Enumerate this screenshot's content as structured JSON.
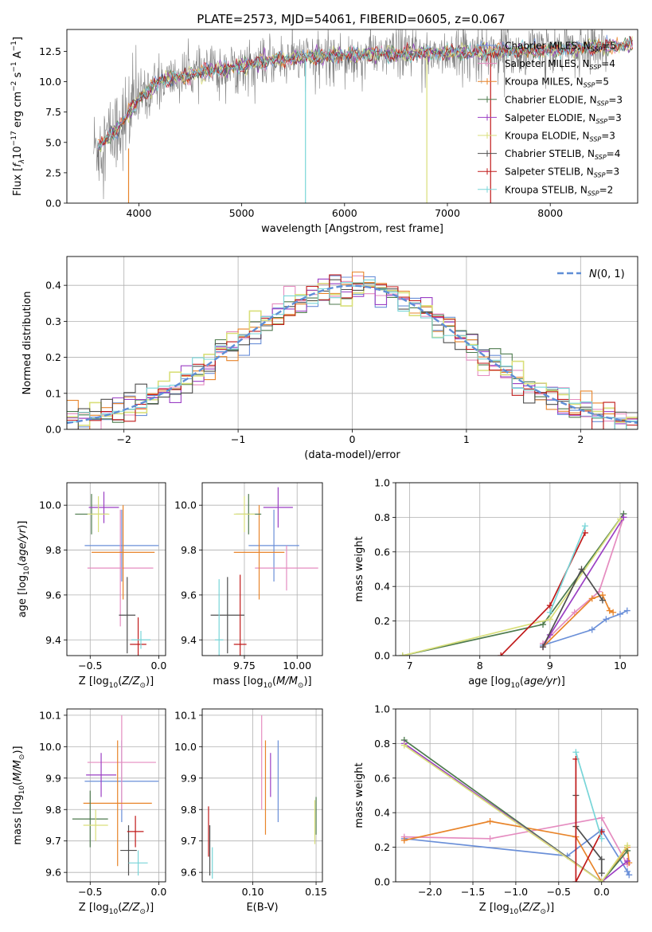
{
  "figure": {
    "title": "PLATE=2573, MJD=54061, FIBERID=0605, z=0.067"
  },
  "colors": {
    "Chabrier MILES": "#6a8fd8",
    "Salpeter MILES": "#e58cc0",
    "Kroupa MILES": "#e8842a",
    "Chabrier ELODIE": "#4d7a4d",
    "Salpeter ELODIE": "#9b3fc4",
    "Kroupa ELODIE": "#d9df7a",
    "Chabrier STELIB": "#4f4f4f",
    "Salpeter STELIB": "#c01a1a",
    "Kroupa STELIB": "#78d5d8",
    "gaussian": "#5f8ed6",
    "observed": "#7f7f7f",
    "grid": "#b0b0b0"
  },
  "chart_data": [
    {
      "id": "spectrum",
      "type": "line",
      "title": "PLATE=2573, MJD=54061, FIBERID=0605, z=0.067",
      "xlabel": "wavelength [Angstrom, rest frame]",
      "ylabel": "Flux [f_λ 10^-17 erg cm^-2 s^-1 A^-1]",
      "xlim": [
        3300,
        8850
      ],
      "ylim": [
        0,
        14.3
      ],
      "xticks": [
        4000,
        5000,
        6000,
        7000,
        8000
      ],
      "yticks": [
        0.0,
        2.5,
        5.0,
        7.5,
        10.0,
        12.5
      ],
      "grid": false,
      "legend_position": "right",
      "continuum": [
        [
          3600,
          4.6
        ],
        [
          3800,
          6.2
        ],
        [
          4000,
          8.6
        ],
        [
          4200,
          10.0
        ],
        [
          4500,
          10.6
        ],
        [
          4800,
          11.0
        ],
        [
          5000,
          11.3
        ],
        [
          5300,
          11.8
        ],
        [
          5600,
          12.0
        ],
        [
          6000,
          12.2
        ],
        [
          6500,
          12.3
        ],
        [
          7000,
          12.4
        ],
        [
          7500,
          12.5
        ],
        [
          8000,
          12.6
        ],
        [
          8500,
          12.9
        ],
        [
          8800,
          13.0
        ]
      ],
      "observed_range": [
        3560,
        8550
      ],
      "model_range": [
        3600,
        8800
      ],
      "artifacts": [
        {
          "x": 3900,
          "ymin": 0.0,
          "ymax": 4.5,
          "series": "Kroupa MILES"
        },
        {
          "x": 5620,
          "ymin": 0.0,
          "ymax": 11.8,
          "series": "Kroupa STELIB"
        },
        {
          "x": 6800,
          "ymin": 0.0,
          "ymax": 12.1,
          "series": "Kroupa ELODIE"
        },
        {
          "x": 7420,
          "ymin": 0.0,
          "ymax": 12.4,
          "series": "Salpeter STELIB"
        }
      ],
      "legend": [
        {
          "label": "Chabrier MILES",
          "nssp": "5"
        },
        {
          "label": "Salpeter MILES",
          "nssp": "4"
        },
        {
          "label": "Kroupa MILES",
          "nssp": "5"
        },
        {
          "label": "Chabrier ELODIE",
          "nssp": "3"
        },
        {
          "label": "Salpeter ELODIE",
          "nssp": "3"
        },
        {
          "label": "Kroupa ELODIE",
          "nssp": "3"
        },
        {
          "label": "Chabrier STELIB",
          "nssp": "4"
        },
        {
          "label": "Salpeter STELIB",
          "nssp": "3"
        },
        {
          "label": "Kroupa STELIB",
          "nssp": "2"
        }
      ]
    },
    {
      "id": "residuals",
      "type": "histogram",
      "xlabel": "(data-model)/error",
      "ylabel": "Normed distribution",
      "xlim": [
        -2.5,
        2.5
      ],
      "ylim": [
        0,
        0.48
      ],
      "xticks": [
        -2,
        -1,
        0,
        1,
        2
      ],
      "yticks": [
        0.0,
        0.1,
        0.2,
        0.3,
        0.4
      ],
      "grid": true,
      "bin_width": 0.1,
      "gaussian_label": "N(0,1)",
      "legend_position": "top-right"
    },
    {
      "id": "age_vs_Z",
      "type": "errorbar",
      "xlabel": "Z [log10(Z/Zsun)]",
      "ylabel": "age [log10(age/yr)]",
      "xlim": [
        -0.67,
        0.05
      ],
      "ylim": [
        9.33,
        10.1
      ],
      "xticks": [
        -0.5,
        0.0
      ],
      "yticks": [
        9.4,
        9.6,
        9.8,
        10.0
      ],
      "grid": true,
      "points": [
        {
          "series": "Chabrier MILES",
          "x": -0.27,
          "y": 9.82,
          "xerr": 0.27,
          "yerr": 0.16
        },
        {
          "series": "Salpeter MILES",
          "x": -0.28,
          "y": 9.72,
          "xerr": 0.24,
          "yerr": 0.26
        },
        {
          "series": "Kroupa MILES",
          "x": -0.26,
          "y": 9.79,
          "xerr": 0.23,
          "yerr": 0.21
        },
        {
          "series": "Chabrier ELODIE",
          "x": -0.49,
          "y": 9.96,
          "xerr": 0.12,
          "yerr": 0.09
        },
        {
          "series": "Salpeter ELODIE",
          "x": -0.4,
          "y": 9.99,
          "xerr": 0.11,
          "yerr": 0.07
        },
        {
          "series": "Kroupa ELODIE",
          "x": -0.44,
          "y": 9.96,
          "xerr": 0.08,
          "yerr": 0.08
        },
        {
          "series": "Chabrier STELIB",
          "x": -0.23,
          "y": 9.51,
          "xerr": 0.06,
          "yerr": 0.17
        },
        {
          "series": "Salpeter STELIB",
          "x": -0.15,
          "y": 9.38,
          "xerr": 0.06,
          "yerr": 0.12
        },
        {
          "series": "Kroupa STELIB",
          "x": -0.13,
          "y": 9.4,
          "xerr": 0.07,
          "yerr": 0.04
        }
      ]
    },
    {
      "id": "age_vs_mass",
      "type": "errorbar",
      "xlabel": "mass [log10(M/Msun)]",
      "ylabel": "",
      "xlim": [
        9.55,
        10.12
      ],
      "ylim": [
        9.33,
        10.1
      ],
      "xticks": [
        9.75,
        10.0
      ],
      "yticks": [
        9.4,
        9.6,
        9.8,
        10.0
      ],
      "grid": true,
      "points": [
        {
          "series": "Chabrier MILES",
          "x": 9.89,
          "y": 9.82,
          "xerr": 0.12,
          "yerr": 0.16
        },
        {
          "series": "Salpeter MILES",
          "x": 9.95,
          "y": 9.72,
          "xerr": 0.15,
          "yerr": 0.1
        },
        {
          "series": "Kroupa MILES",
          "x": 9.82,
          "y": 9.79,
          "xerr": 0.12,
          "yerr": 0.21
        },
        {
          "series": "Chabrier ELODIE",
          "x": 9.77,
          "y": 9.96,
          "xerr": 0.06,
          "yerr": 0.09
        },
        {
          "series": "Salpeter ELODIE",
          "x": 9.91,
          "y": 9.99,
          "xerr": 0.07,
          "yerr": 0.09
        },
        {
          "series": "Kroupa ELODIE",
          "x": 9.75,
          "y": 9.96,
          "xerr": 0.05,
          "yerr": 0.08
        },
        {
          "series": "Chabrier STELIB",
          "x": 9.67,
          "y": 9.51,
          "xerr": 0.08,
          "yerr": 0.17
        },
        {
          "series": "Salpeter STELIB",
          "x": 9.73,
          "y": 9.38,
          "xerr": 0.03,
          "yerr": 0.31
        },
        {
          "series": "Kroupa STELIB",
          "x": 9.63,
          "y": 9.4,
          "xerr": 0.02,
          "yerr": 0.27
        }
      ]
    },
    {
      "id": "weight_vs_age",
      "type": "line",
      "xlabel": "age [log10(age/yr)]",
      "ylabel": "mass weight",
      "xlim": [
        6.8,
        10.25
      ],
      "ylim": [
        0.0,
        1.0
      ],
      "xticks": [
        7,
        8,
        9,
        10
      ],
      "yticks": [
        0.0,
        0.2,
        0.4,
        0.6,
        0.8,
        1.0
      ],
      "grid": true,
      "series": [
        {
          "name": "Chabrier MILES",
          "x": [
            8.9,
            9.6,
            9.8,
            10.0,
            10.1
          ],
          "y": [
            0.06,
            0.15,
            0.21,
            0.24,
            0.26
          ]
        },
        {
          "name": "Salpeter MILES",
          "x": [
            8.9,
            9.35,
            9.7,
            10.05
          ],
          "y": [
            0.07,
            0.25,
            0.37,
            0.8
          ]
        },
        {
          "name": "Kroupa MILES",
          "x": [
            8.9,
            9.6,
            9.75,
            9.85,
            9.9
          ],
          "y": [
            0.05,
            0.33,
            0.35,
            0.26,
            0.25
          ]
        },
        {
          "name": "Chabrier ELODIE",
          "x": [
            6.9,
            8.9,
            10.05
          ],
          "y": [
            0.0,
            0.18,
            0.82
          ]
        },
        {
          "name": "Salpeter ELODIE",
          "x": [
            8.9,
            9.0,
            10.05
          ],
          "y": [
            0.05,
            0.12,
            0.8
          ]
        },
        {
          "name": "Kroupa ELODIE",
          "x": [
            6.9,
            9.0,
            10.0
          ],
          "y": [
            0.0,
            0.21,
            0.79
          ]
        },
        {
          "name": "Chabrier STELIB",
          "x": [
            8.9,
            9.45,
            9.75
          ],
          "y": [
            0.05,
            0.5,
            0.32
          ]
        },
        {
          "name": "Salpeter STELIB",
          "x": [
            8.3,
            9.0,
            9.5
          ],
          "y": [
            0.0,
            0.29,
            0.71
          ]
        },
        {
          "name": "Kroupa STELIB",
          "x": [
            9.0,
            9.5
          ],
          "y": [
            0.25,
            0.75
          ]
        }
      ]
    },
    {
      "id": "mass_vs_Z",
      "type": "errorbar",
      "xlabel": "Z [log10(Z/Zsun)]",
      "ylabel": "mass [log10(M/Msun)]",
      "xlim": [
        -0.67,
        0.05
      ],
      "ylim": [
        9.57,
        10.12
      ],
      "xticks": [
        -0.5,
        0.0
      ],
      "yticks": [
        9.6,
        9.7,
        9.8,
        9.9,
        10.0,
        10.1
      ],
      "grid": true,
      "points": [
        {
          "series": "Chabrier MILES",
          "x": -0.27,
          "y": 9.89,
          "xerr": 0.27,
          "yerr": 0.13
        },
        {
          "series": "Salpeter MILES",
          "x": -0.27,
          "y": 9.95,
          "xerr": 0.25,
          "yerr": 0.15
        },
        {
          "series": "Kroupa MILES",
          "x": -0.3,
          "y": 9.82,
          "xerr": 0.25,
          "yerr": 0.2
        },
        {
          "series": "Chabrier ELODIE",
          "x": -0.5,
          "y": 9.77,
          "xerr": 0.13,
          "yerr": 0.09
        },
        {
          "series": "Salpeter ELODIE",
          "x": -0.42,
          "y": 9.91,
          "xerr": 0.11,
          "yerr": 0.07
        },
        {
          "series": "Kroupa ELODIE",
          "x": -0.46,
          "y": 9.75,
          "xerr": 0.09,
          "yerr": 0.05
        },
        {
          "series": "Chabrier STELIB",
          "x": -0.22,
          "y": 9.67,
          "xerr": 0.06,
          "yerr": 0.08
        },
        {
          "series": "Salpeter STELIB",
          "x": -0.17,
          "y": 9.73,
          "xerr": 0.06,
          "yerr": 0.05
        },
        {
          "series": "Kroupa STELIB",
          "x": -0.15,
          "y": 9.63,
          "xerr": 0.07,
          "yerr": 0.04
        }
      ]
    },
    {
      "id": "mass_vs_ebv",
      "type": "errorbar",
      "xlabel": "E(B-V)",
      "ylabel": "",
      "xlim": [
        0.06,
        0.155
      ],
      "ylim": [
        9.57,
        10.12
      ],
      "xticks": [
        0.1,
        0.15
      ],
      "yticks": [
        9.6,
        9.7,
        9.8,
        9.9,
        10.0,
        10.1
      ],
      "grid": true,
      "points": [
        {
          "series": "Chabrier MILES",
          "x": 0.12,
          "y": 9.89,
          "xerr": 0.0,
          "yerr": 0.13
        },
        {
          "series": "Salpeter MILES",
          "x": 0.107,
          "y": 9.95,
          "xerr": 0.0,
          "yerr": 0.15
        },
        {
          "series": "Kroupa MILES",
          "x": 0.11,
          "y": 9.87,
          "xerr": 0.0,
          "yerr": 0.15
        },
        {
          "series": "Chabrier ELODIE",
          "x": 0.15,
          "y": 9.78,
          "xerr": 0.0,
          "yerr": 0.06
        },
        {
          "series": "Salpeter ELODIE",
          "x": 0.114,
          "y": 9.91,
          "xerr": 0.0,
          "yerr": 0.07
        },
        {
          "series": "Kroupa ELODIE",
          "x": 0.149,
          "y": 9.76,
          "xerr": 0.0,
          "yerr": 0.07
        },
        {
          "series": "Chabrier STELIB",
          "x": 0.066,
          "y": 9.67,
          "xerr": 0.0,
          "yerr": 0.08
        },
        {
          "series": "Salpeter STELIB",
          "x": 0.065,
          "y": 9.73,
          "xerr": 0.0,
          "yerr": 0.08
        },
        {
          "series": "Kroupa STELIB",
          "x": 0.068,
          "y": 9.63,
          "xerr": 0.0,
          "yerr": 0.05
        }
      ]
    },
    {
      "id": "weight_vs_Z",
      "type": "line",
      "xlabel": "Z [log10(Z/Zsun)]",
      "ylabel": "mass weight",
      "xlim": [
        -2.4,
        0.42
      ],
      "ylim": [
        0.0,
        1.0
      ],
      "xticks": [
        -2.0,
        -1.5,
        -1.0,
        -0.5,
        0.0
      ],
      "yticks": [
        0.0,
        0.2,
        0.4,
        0.6,
        0.8,
        1.0
      ],
      "grid": true,
      "series": [
        {
          "name": "Chabrier MILES",
          "x": [
            -2.3,
            -0.4,
            0.0,
            0.3,
            0.32
          ],
          "y": [
            0.25,
            0.15,
            0.3,
            0.06,
            0.04
          ]
        },
        {
          "name": "Salpeter MILES",
          "x": [
            -2.3,
            -1.3,
            0.0,
            0.3
          ],
          "y": [
            0.26,
            0.25,
            0.37,
            0.1
          ]
        },
        {
          "name": "Kroupa MILES",
          "x": [
            -2.3,
            -1.3,
            -0.3,
            0.0,
            0.3,
            0.32
          ],
          "y": [
            0.24,
            0.35,
            0.26,
            0.0,
            0.2,
            0.11
          ]
        },
        {
          "name": "Chabrier ELODIE",
          "x": [
            -2.3,
            0.0,
            0.3
          ],
          "y": [
            0.82,
            0.0,
            0.18
          ]
        },
        {
          "name": "Salpeter ELODIE",
          "x": [
            -2.3,
            0.0,
            0.3
          ],
          "y": [
            0.8,
            0.0,
            0.12
          ]
        },
        {
          "name": "Kroupa ELODIE",
          "x": [
            -2.3,
            0.0,
            0.3
          ],
          "y": [
            0.79,
            0.0,
            0.21
          ]
        },
        {
          "name": "Chabrier STELIB",
          "x": [
            -0.3,
            -0.3,
            0.0,
            0.0
          ],
          "y": [
            0.5,
            0.32,
            0.13,
            0.05
          ]
        },
        {
          "name": "Salpeter STELIB",
          "x": [
            -0.3,
            -0.3,
            0.0
          ],
          "y": [
            0.71,
            0.0,
            0.29
          ]
        },
        {
          "name": "Kroupa STELIB",
          "x": [
            -0.3,
            0.0
          ],
          "y": [
            0.75,
            0.25
          ]
        }
      ]
    }
  ]
}
